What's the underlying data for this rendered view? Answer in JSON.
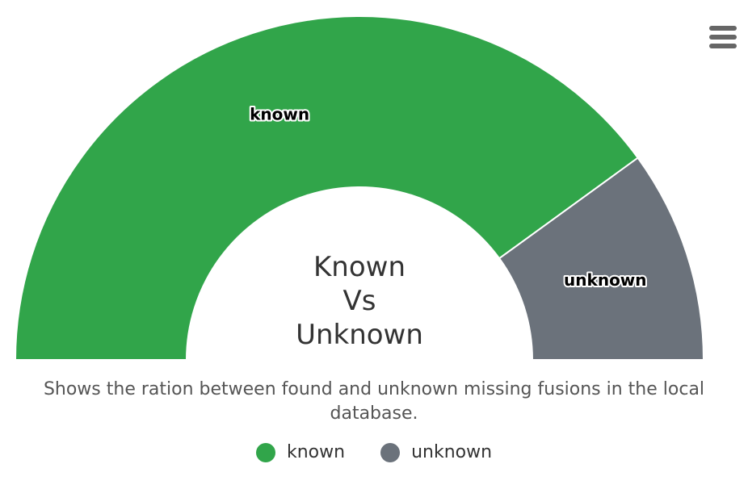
{
  "chart_data": {
    "type": "pie",
    "variant": "semi-circle donut",
    "title": "Known\nVs\nUnknown",
    "subtitle": "Shows the ration between found and unknown missing fusions in the local database.",
    "series": [
      {
        "slices": [
          {
            "name": "known",
            "value": 80,
            "color": "#31a54a"
          },
          {
            "name": "unknown",
            "value": 20,
            "color": "#6b727b"
          }
        ]
      }
    ],
    "legend_position": "bottom-center",
    "data_labels": true
  },
  "menu": {
    "icon": "hamburger-menu-icon"
  }
}
